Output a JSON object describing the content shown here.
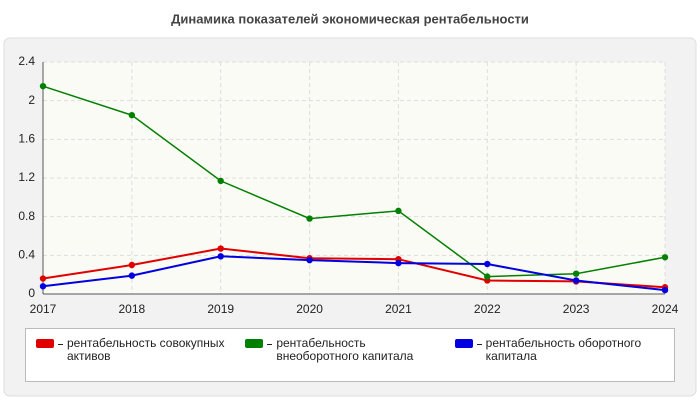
{
  "chart_data": {
    "type": "line",
    "title": "Динамика показателей экономическая рентабельности",
    "categories": [
      "2017",
      "2018",
      "2019",
      "2020",
      "2021",
      "2022",
      "2023",
      "2024"
    ],
    "series": [
      {
        "name": "рентабельность совокупных активов",
        "color": "#e00000",
        "values": [
          0.16,
          0.3,
          0.47,
          0.37,
          0.36,
          0.14,
          0.13,
          0.07
        ]
      },
      {
        "name": "рентабельность внеоборотного капитала",
        "color": "#008000",
        "values": [
          2.15,
          1.85,
          1.17,
          0.78,
          0.86,
          0.18,
          0.21,
          0.38
        ]
      },
      {
        "name": "рентабельность оборотного капитала",
        "color": "#0000e0",
        "values": [
          0.08,
          0.19,
          0.39,
          0.35,
          0.32,
          0.31,
          0.14,
          0.04
        ]
      }
    ],
    "ylim": [
      0,
      2.4
    ],
    "yticks": [
      0,
      0.4,
      0.8,
      1.2,
      1.6,
      2,
      2.4
    ],
    "grid": true
  }
}
